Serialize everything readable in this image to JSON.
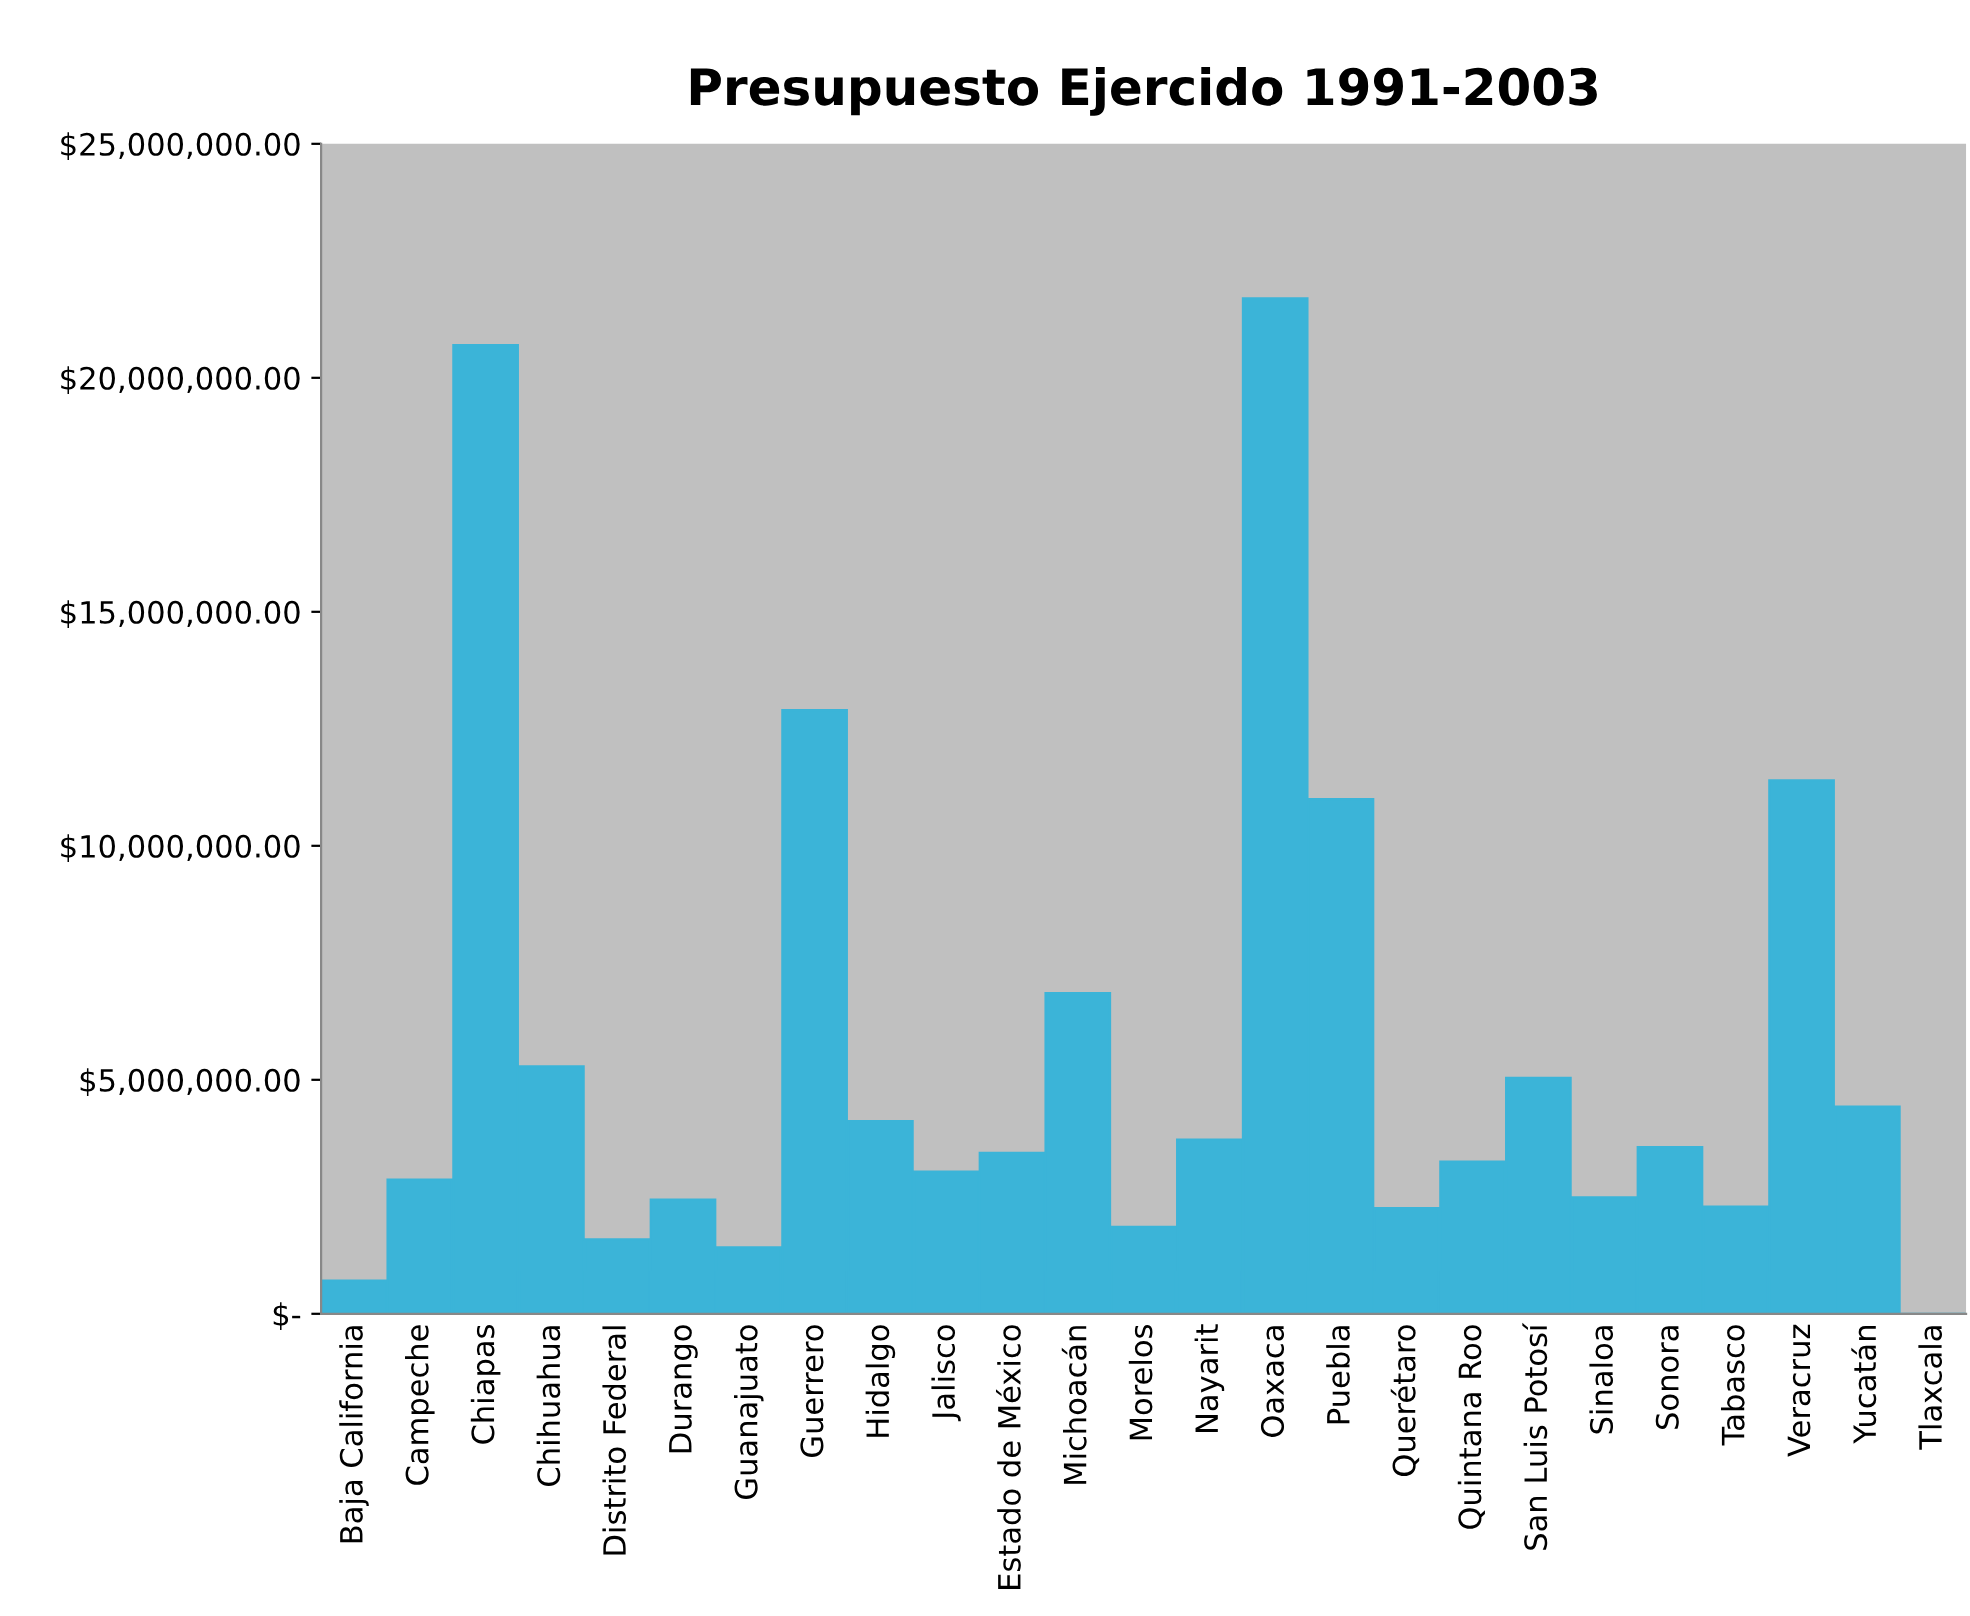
{
  "chart_data": {
    "type": "bar",
    "title": "Presupuesto Ejercido 1991-2003",
    "categories": [
      "Baja California",
      "Campeche",
      "Chiapas",
      "Chihuahua",
      "Distrito Federal",
      "Durango",
      "Guanajuato",
      "Guerrero",
      "Hidalgo",
      "Jalisco",
      "Estado de México",
      "Michoacán",
      "Morelos",
      "Nayarit",
      "Oaxaca",
      "Puebla",
      "Querétaro",
      "Quintana Roo",
      "San Luis Potosí",
      "Sinaloa",
      "Sonora",
      "Tabasco",
      "Veracruz",
      "Yucatán",
      "Tlaxcala"
    ],
    "values": [
      710000,
      2870000,
      20700000,
      5290000,
      1590000,
      2440000,
      1420000,
      12900000,
      4120000,
      3040000,
      3440000,
      6850000,
      1860000,
      3720000,
      21700000,
      11000000,
      2260000,
      3250000,
      5040000,
      2490000,
      3560000,
      2290000,
      11400000,
      4430000,
      0
    ],
    "color": "#3bb4d8",
    "ylim": [
      0,
      25000000
    ],
    "yticks": [
      {
        "value": 0,
        "label": "$-"
      },
      {
        "value": 5000000,
        "label": "$5,000,000.00"
      },
      {
        "value": 10000000,
        "label": "$10,000,000.00"
      },
      {
        "value": 15000000,
        "label": "$15,000,000.00"
      },
      {
        "value": 20000000,
        "label": "$20,000,000.00"
      },
      {
        "value": 25000000,
        "label": "$25,000,000.00"
      }
    ],
    "grid": false
  }
}
